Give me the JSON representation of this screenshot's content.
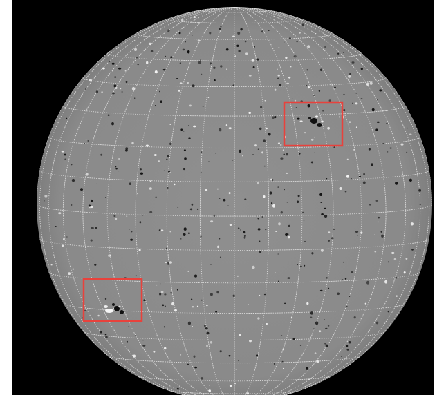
{
  "image": {
    "subject": "",
    "colors": {
      "background": "#000000",
      "disk": "#8c8c8c",
      "grid": "#e6e6e6",
      "highlight_box": "#e8423c",
      "negative_polarity": "#111111",
      "positive_polarity": "#f4f4f4"
    },
    "icon": "sun-disk-icon"
  }
}
